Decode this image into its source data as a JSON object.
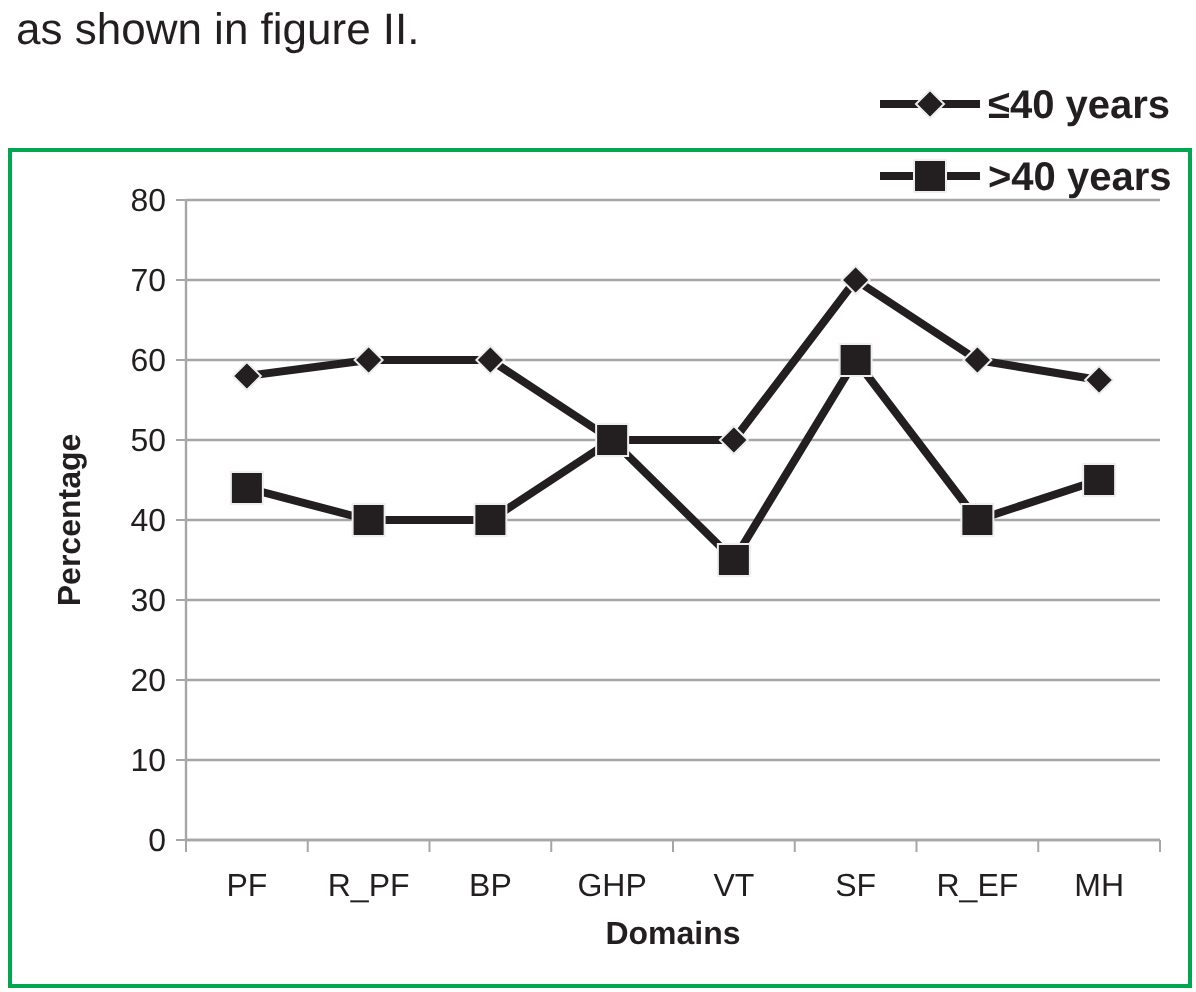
{
  "chart_data": {
    "type": "line",
    "xlabel": "Domains",
    "ylabel": "Percentage",
    "annotations": [
      "as shown in figure II."
    ],
    "categories": [
      "PF",
      "R_PF",
      "BP",
      "GHP",
      "VT",
      "SF",
      "R_EF",
      "MH"
    ],
    "series": [
      {
        "name": "≤40 years",
        "color": "#231f20",
        "marker": "diamond",
        "values": [
          58,
          60,
          60,
          50,
          50,
          70,
          60,
          57.5
        ]
      },
      {
        "name": ">40 years",
        "color": "#231f20",
        "marker": "square",
        "values": [
          44,
          40,
          40,
          50,
          35,
          60,
          40,
          45
        ]
      }
    ],
    "ylim": [
      0,
      80
    ],
    "yticks": [
      0,
      10,
      20,
      30,
      40,
      50,
      60,
      70,
      80
    ],
    "grid": "y",
    "legend": "top right",
    "line_style": "solid"
  }
}
